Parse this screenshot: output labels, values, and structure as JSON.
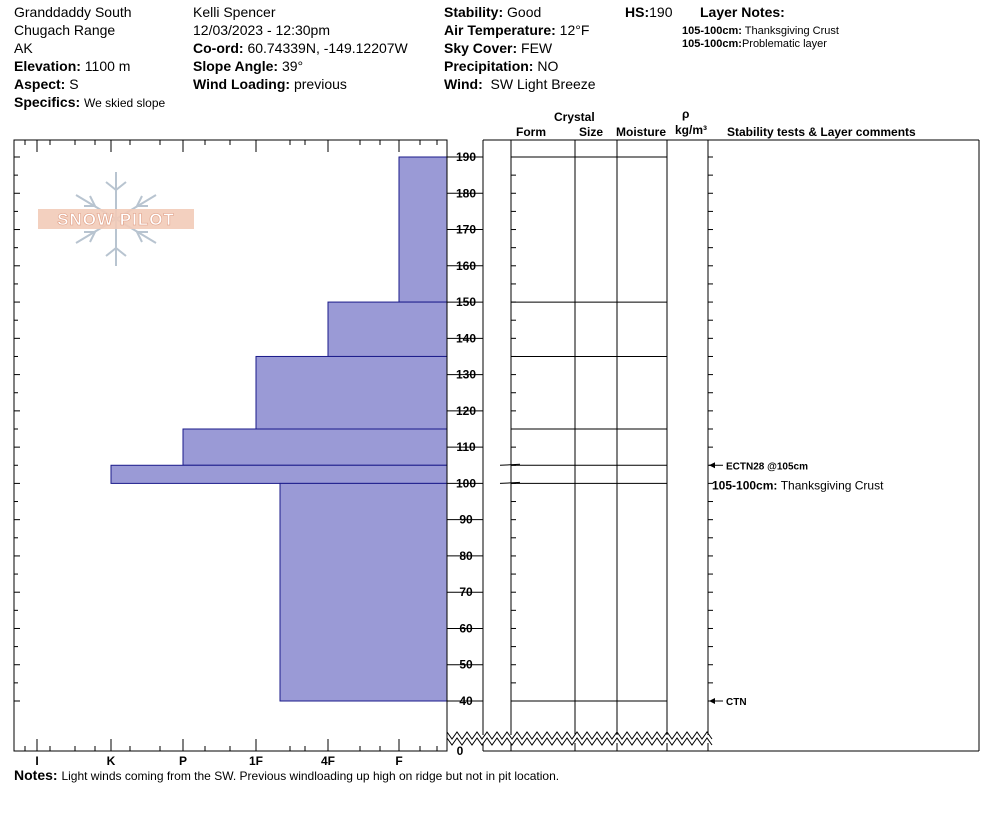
{
  "site": {
    "name": "Granddaddy South",
    "range": "Chugach Range",
    "state": "AK",
    "elevation_label": "Elevation:",
    "elevation": "1100 m",
    "aspect_label": "Aspect:",
    "aspect": "S",
    "specifics_label": "Specifics:",
    "specifics": "We skied slope"
  },
  "observer": {
    "name": "Kelli Spencer",
    "datetime": "12/03/2023 - 12:30pm",
    "coord_label": "Co-ord:",
    "coord": "60.74339N, -149.12207W",
    "slope_label": "Slope Angle:",
    "slope": "39°",
    "wind_loading_label": "Wind Loading:",
    "wind_loading": "previous"
  },
  "conditions": {
    "stability_label": "Stability:",
    "stability": "Good",
    "air_temp_label": "Air Temperature:",
    "air_temp": "12°F",
    "sky_label": "Sky Cover:",
    "sky": "FEW",
    "precip_label": "Precipitation:",
    "precip": "NO",
    "wind_label": "Wind:",
    "wind": "SW Light Breeze",
    "hs_label": "HS:",
    "hs": "190"
  },
  "layer_notes": {
    "title": "Layer Notes:",
    "items": [
      {
        "range": "105-100cm:",
        "text": "Thanksgiving Crust"
      },
      {
        "range": "105-100cm:",
        "text": "Problematic layer"
      }
    ]
  },
  "columns": {
    "crystal": "Crystal",
    "form": "Form",
    "size": "Size",
    "moisture": "Moisture",
    "rho": "ρ",
    "density_unit": "kg/m³",
    "comments": "Stability tests & Layer comments"
  },
  "logo": {
    "text": "SNOW PILOT"
  },
  "chart_data": {
    "type": "bar",
    "orientation": "horizontal",
    "hardness_scale": [
      "I",
      "K",
      "P",
      "1F",
      "4F",
      "F"
    ],
    "y_ticks": [
      190,
      180,
      170,
      160,
      150,
      140,
      130,
      120,
      110,
      100,
      90,
      80,
      70,
      60,
      50,
      40
    ],
    "y_zero_label": "0",
    "ylim": [
      40,
      190
    ],
    "ylabel": "",
    "layers": [
      {
        "top": 190,
        "bottom": 150,
        "hardness": "F"
      },
      {
        "top": 150,
        "bottom": 135,
        "hardness": "4F"
      },
      {
        "top": 135,
        "bottom": 115,
        "hardness": "1F"
      },
      {
        "top": 115,
        "bottom": 105,
        "hardness": "P"
      },
      {
        "top": 105,
        "bottom": 100,
        "hardness": "K"
      },
      {
        "top": 100,
        "bottom": 40,
        "hardness": "1F-"
      }
    ],
    "layer_boundaries": [
      190,
      150,
      135,
      115,
      105,
      100,
      40
    ],
    "tests": [
      {
        "depth": 105,
        "label": "ECTN28 @105cm"
      },
      {
        "depth": 40,
        "label": "CTN"
      }
    ],
    "layer_comments": [
      {
        "depth": 100,
        "range": "105-100cm:",
        "text": "Thanksgiving Crust"
      }
    ],
    "fill_color": "#9a9ad6",
    "stroke_color": "#1a1a8a"
  },
  "notes": {
    "label": "Notes:",
    "text": "Light winds coming from the SW. Previous windloading up high on ridge but not in pit location."
  }
}
